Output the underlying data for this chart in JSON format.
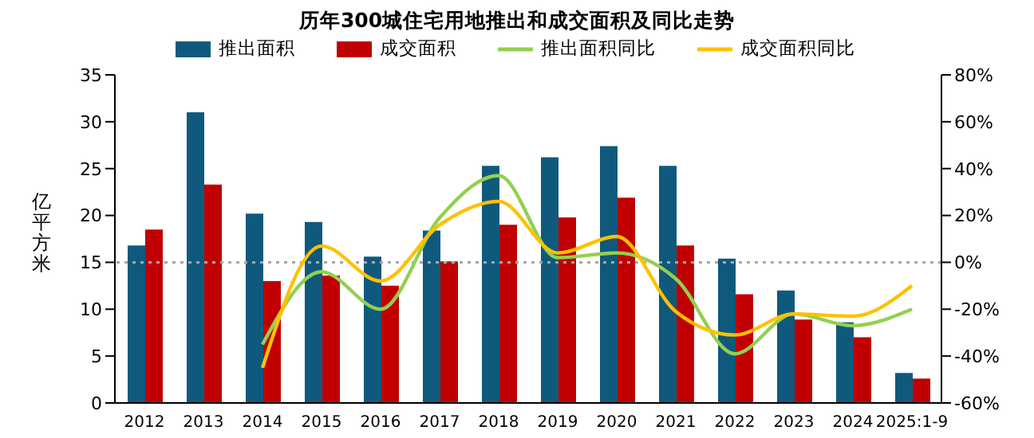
{
  "chart_data": {
    "type": "bar",
    "title": "历年300城住宅用地推出和成交面积及同比走势",
    "ylabel": "亿平方米",
    "categories": [
      "2012",
      "2013",
      "2014",
      "2015",
      "2016",
      "2017",
      "2018",
      "2019",
      "2020",
      "2021",
      "2022",
      "2023",
      "2024",
      "2025:1-9"
    ],
    "series": [
      {
        "name": "推出面积",
        "color": "#0f5a7c",
        "values": [
          16.8,
          31.0,
          20.2,
          19.3,
          15.6,
          18.4,
          25.3,
          26.2,
          27.4,
          25.3,
          15.4,
          12.0,
          8.6,
          3.2
        ]
      },
      {
        "name": "成交面积",
        "color": "#c00000",
        "values": [
          18.5,
          23.3,
          13.0,
          13.6,
          12.5,
          15.1,
          19.0,
          19.8,
          21.9,
          16.8,
          11.6,
          8.9,
          7.0,
          2.6
        ]
      },
      {
        "name": "推出面积同比",
        "type": "line",
        "axis": "y2",
        "color": "#92d050",
        "values": [
          null,
          null,
          -35,
          -4,
          -20,
          19,
          37,
          2,
          4,
          -7,
          -39,
          -22,
          -27,
          -20
        ]
      },
      {
        "name": "成交面积同比",
        "type": "line",
        "axis": "y2",
        "color": "#ffc000",
        "values": [
          null,
          null,
          -45,
          7,
          -8,
          16,
          26,
          4,
          11,
          -21,
          -31,
          -22,
          -23,
          -10
        ]
      }
    ],
    "ylim": [
      0,
      35
    ],
    "yticks": [
      0,
      5,
      10,
      15,
      20,
      25,
      30,
      35
    ],
    "y2lim": [
      -60,
      80
    ],
    "y2ticks": [
      {
        "value": -60,
        "label": "-60%"
      },
      {
        "value": -40,
        "label": "-40%"
      },
      {
        "value": -20,
        "label": "-20%"
      },
      {
        "value": 0,
        "label": "0%"
      },
      {
        "value": 20,
        "label": "20%"
      },
      {
        "value": 40,
        "label": "40%"
      },
      {
        "value": 60,
        "label": "60%"
      },
      {
        "value": 80,
        "label": "80%"
      }
    ],
    "ref_lines": [
      {
        "axis": "y2",
        "value": 0,
        "color": "#a6a6a6",
        "line_style": "dotted"
      }
    ],
    "legend": "top",
    "grid": false,
    "marker": "none",
    "line_style": "solid"
  }
}
